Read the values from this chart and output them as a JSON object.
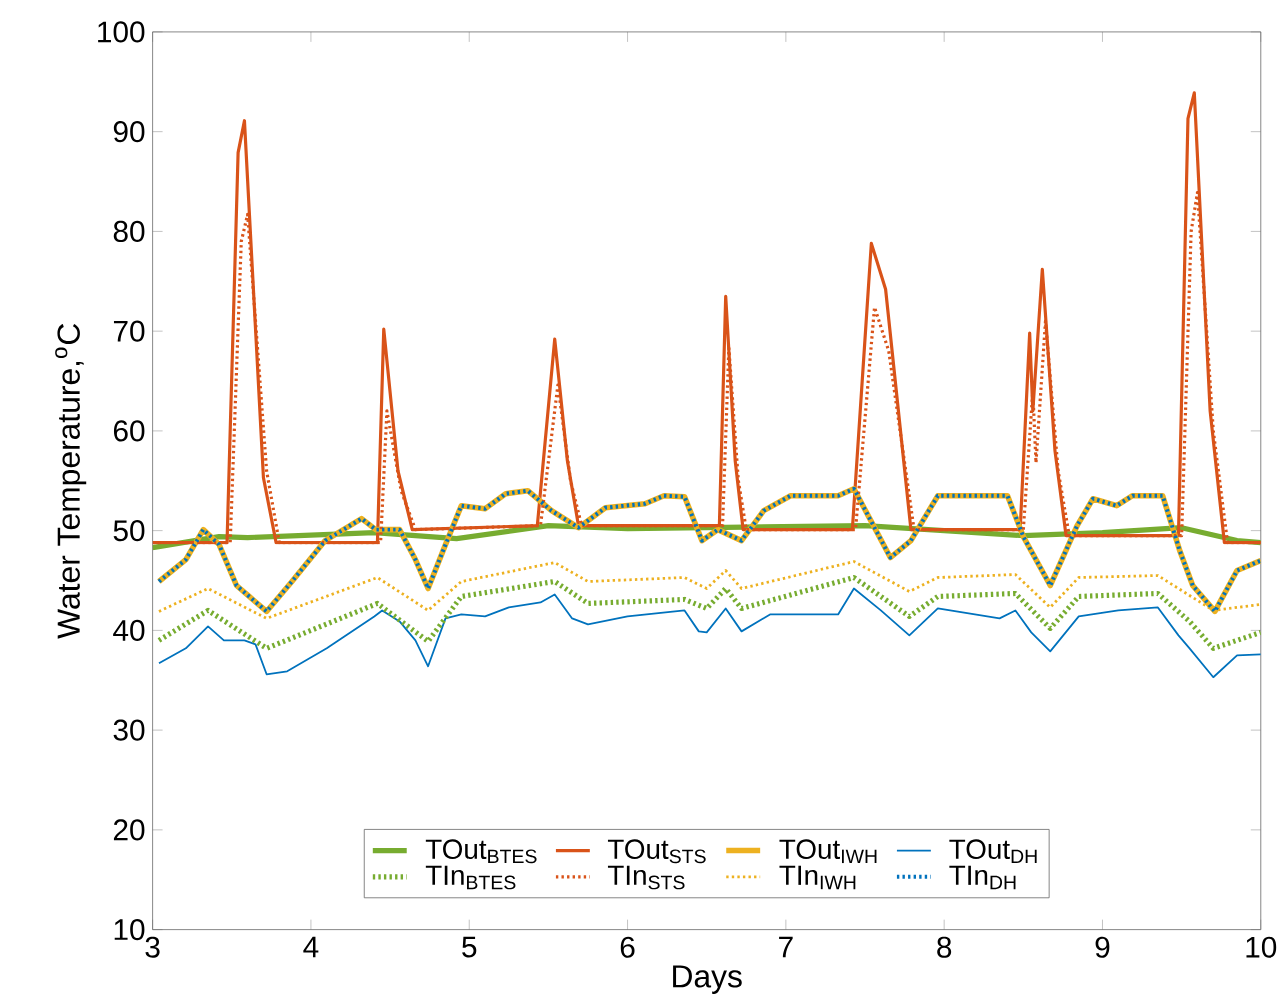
{
  "chart_data": {
    "type": "line",
    "xlabel": "Days",
    "ylabel": "Water Temperature,$^{o}$C",
    "xlim": [
      3,
      10
    ],
    "ylim": [
      10,
      100
    ],
    "xticks": [
      3,
      4,
      5,
      6,
      7,
      8,
      9,
      10
    ],
    "yticks": [
      10,
      20,
      30,
      40,
      50,
      60,
      70,
      80,
      90,
      100
    ],
    "grid": false,
    "legend": "bottom",
    "marker": "none",
    "series": [
      {
        "name": "TOut$_{BTES}$",
        "color": "#77ac30",
        "line_style": "solid",
        "x": [
          3.0,
          3.42,
          3.6,
          4.4,
          4.92,
          5.5,
          6.0,
          6.5,
          7.0,
          7.5,
          8.0,
          8.5,
          9.0,
          9.5,
          9.85,
          10.0
        ],
        "values": [
          48.3,
          49.4,
          49.3,
          49.8,
          49.2,
          50.5,
          50.2,
          50.3,
          50.4,
          50.5,
          50.0,
          49.5,
          49.8,
          50.3,
          49.0,
          48.8
        ]
      },
      {
        "name": "TOut$_{STS}$",
        "color": "#d95319",
        "line_style": "solid",
        "x": [
          3.0,
          3.47,
          3.54,
          3.58,
          3.7,
          3.78,
          4.42,
          4.46,
          4.55,
          4.64,
          5.43,
          5.54,
          5.62,
          5.69,
          6.58,
          6.62,
          6.68,
          6.73,
          7.42,
          7.54,
          7.63,
          7.79,
          8.48,
          8.54,
          8.56,
          8.62,
          8.7,
          8.77,
          9.48,
          9.54,
          9.58,
          9.68,
          9.77,
          10.0
        ],
        "values": [
          48.8,
          48.8,
          87.9,
          91.1,
          55.3,
          48.8,
          48.8,
          70.2,
          56.0,
          50.1,
          50.5,
          69.2,
          57.0,
          50.5,
          50.5,
          73.5,
          57.0,
          50.1,
          50.1,
          78.8,
          74.2,
          50.1,
          50.1,
          69.8,
          62.0,
          76.2,
          58.0,
          49.5,
          49.5,
          91.3,
          93.9,
          62.0,
          48.8,
          48.8
        ]
      },
      {
        "name": "TOut$_{IWH}$",
        "color": "#edb120",
        "line_style": "solid",
        "x": [
          3.04,
          3.21,
          3.32,
          3.42,
          3.53,
          3.61,
          3.72,
          3.88,
          4.09,
          4.32,
          4.41,
          4.56,
          4.66,
          4.74,
          4.85,
          4.95,
          5.1,
          5.23,
          5.37,
          5.52,
          5.69,
          5.86,
          6.11,
          6.23,
          6.36,
          6.47,
          6.57,
          6.72,
          6.86,
          7.03,
          7.33,
          7.43,
          7.54,
          7.66,
          7.79,
          7.96,
          8.4,
          8.5,
          8.67,
          8.84,
          8.94,
          9.09,
          9.19,
          9.38,
          9.49,
          9.57,
          9.71,
          9.85,
          10.0
        ],
        "values": [
          44.9,
          47.1,
          50.1,
          48.6,
          44.5,
          43.4,
          41.9,
          44.9,
          49.0,
          51.2,
          50.1,
          50.1,
          47.1,
          44.2,
          48.6,
          52.5,
          52.2,
          53.7,
          54.0,
          52.0,
          50.3,
          52.3,
          52.7,
          53.5,
          53.4,
          49.0,
          50.1,
          49.0,
          52.0,
          53.5,
          53.5,
          54.2,
          50.9,
          47.3,
          49.0,
          53.5,
          53.5,
          49.4,
          44.5,
          50.5,
          53.2,
          52.5,
          53.5,
          53.5,
          47.9,
          44.5,
          41.9,
          46.0,
          47.0
        ]
      },
      {
        "name": "TOut$_{DH}$",
        "color": "#0072bd",
        "line_style": "solid",
        "x": [
          3.04,
          3.21,
          3.35,
          3.45,
          3.58,
          3.65,
          3.72,
          3.85,
          4.1,
          4.4,
          4.45,
          4.56,
          4.66,
          4.74,
          4.85,
          4.95,
          5.1,
          5.25,
          5.45,
          5.54,
          5.65,
          5.75,
          6.0,
          6.36,
          6.45,
          6.5,
          6.62,
          6.72,
          6.9,
          7.33,
          7.43,
          7.6,
          7.78,
          7.96,
          8.35,
          8.45,
          8.55,
          8.67,
          8.85,
          9.1,
          9.35,
          9.48,
          9.55,
          9.7,
          9.85,
          10.0
        ],
        "values": [
          36.7,
          38.2,
          40.4,
          39.0,
          39.0,
          38.6,
          35.6,
          35.9,
          38.2,
          41.4,
          42.0,
          40.9,
          39.0,
          36.4,
          41.2,
          41.6,
          41.4,
          42.3,
          42.8,
          43.6,
          41.2,
          40.6,
          41.4,
          42.0,
          39.9,
          39.8,
          42.2,
          39.9,
          41.6,
          41.6,
          44.2,
          42.0,
          39.5,
          42.2,
          41.2,
          42.0,
          39.8,
          37.9,
          41.4,
          42.0,
          42.3,
          39.5,
          38.2,
          35.3,
          37.5,
          37.6
        ]
      },
      {
        "name": "TIn$_{BTES}$",
        "color": "#77ac30",
        "line_style": "dotted",
        "x": [
          3.04,
          3.35,
          3.72,
          4.42,
          4.74,
          4.95,
          5.54,
          5.75,
          6.36,
          6.5,
          6.62,
          6.72,
          7.43,
          7.78,
          7.96,
          8.45,
          8.67,
          8.85,
          9.35,
          9.55,
          9.7,
          10.0
        ],
        "values": [
          39.0,
          42.0,
          38.2,
          42.7,
          38.9,
          43.4,
          44.9,
          42.7,
          43.1,
          42.2,
          44.2,
          42.2,
          45.3,
          41.4,
          43.4,
          43.7,
          40.2,
          43.4,
          43.7,
          40.9,
          38.2,
          39.8
        ]
      },
      {
        "name": "TIn$_{STS}$",
        "color": "#d95319",
        "line_style": "dotted",
        "x": [
          3.0,
          3.49,
          3.56,
          3.6,
          3.72,
          3.8,
          4.44,
          4.48,
          4.57,
          4.66,
          5.45,
          5.56,
          5.64,
          5.71,
          6.6,
          6.64,
          6.7,
          6.75,
          7.44,
          7.56,
          7.65,
          7.81,
          8.5,
          8.56,
          8.58,
          8.64,
          8.72,
          8.79,
          9.5,
          9.56,
          9.6,
          9.7,
          9.79,
          10.0
        ],
        "values": [
          48.8,
          48.8,
          79.0,
          81.7,
          56.0,
          48.8,
          48.8,
          62.0,
          54.0,
          50.1,
          50.5,
          64.6,
          55.0,
          50.5,
          50.5,
          68.3,
          55.0,
          50.1,
          50.1,
          72.4,
          68.0,
          50.1,
          50.1,
          64.0,
          56.8,
          71.0,
          56.0,
          49.5,
          49.5,
          80.0,
          83.9,
          60.0,
          48.8,
          48.8
        ]
      },
      {
        "name": "TIn$_{IWH}$",
        "color": "#edb120",
        "line_style": "dotted",
        "x": [
          3.04,
          3.35,
          3.72,
          4.42,
          4.74,
          4.95,
          5.54,
          5.75,
          6.36,
          6.5,
          6.62,
          6.72,
          7.43,
          7.78,
          7.96,
          8.45,
          8.67,
          8.85,
          9.35,
          9.55,
          9.7,
          10.0
        ],
        "values": [
          41.9,
          44.2,
          41.2,
          45.3,
          42.0,
          44.9,
          46.8,
          44.9,
          45.3,
          44.2,
          46.0,
          44.2,
          46.9,
          43.9,
          45.3,
          45.6,
          42.3,
          45.3,
          45.5,
          43.5,
          42.0,
          42.6
        ]
      },
      {
        "name": "TIn$_{DH}$",
        "color": "#0072bd",
        "line_style": "dotted",
        "x": [
          3.04,
          3.21,
          3.32,
          3.42,
          3.53,
          3.61,
          3.72,
          3.88,
          4.09,
          4.32,
          4.41,
          4.56,
          4.66,
          4.74,
          4.85,
          4.95,
          5.1,
          5.23,
          5.37,
          5.52,
          5.69,
          5.86,
          6.11,
          6.23,
          6.36,
          6.47,
          6.57,
          6.72,
          6.86,
          7.03,
          7.33,
          7.43,
          7.54,
          7.66,
          7.79,
          7.96,
          8.4,
          8.5,
          8.67,
          8.84,
          8.94,
          9.09,
          9.19,
          9.38,
          9.49,
          9.57,
          9.71,
          9.85,
          10.0
        ],
        "values": [
          44.9,
          47.1,
          50.1,
          48.6,
          44.5,
          43.4,
          41.9,
          44.9,
          49.0,
          51.2,
          50.1,
          50.1,
          47.1,
          44.2,
          48.6,
          52.5,
          52.2,
          53.7,
          54.0,
          52.0,
          50.3,
          52.3,
          52.7,
          53.5,
          53.4,
          49.0,
          50.1,
          49.0,
          52.0,
          53.5,
          53.5,
          54.2,
          50.9,
          47.3,
          49.0,
          53.5,
          53.5,
          49.4,
          44.5,
          50.5,
          53.2,
          52.5,
          53.5,
          53.5,
          47.9,
          44.5,
          41.9,
          46.0,
          47.0
        ]
      }
    ]
  }
}
